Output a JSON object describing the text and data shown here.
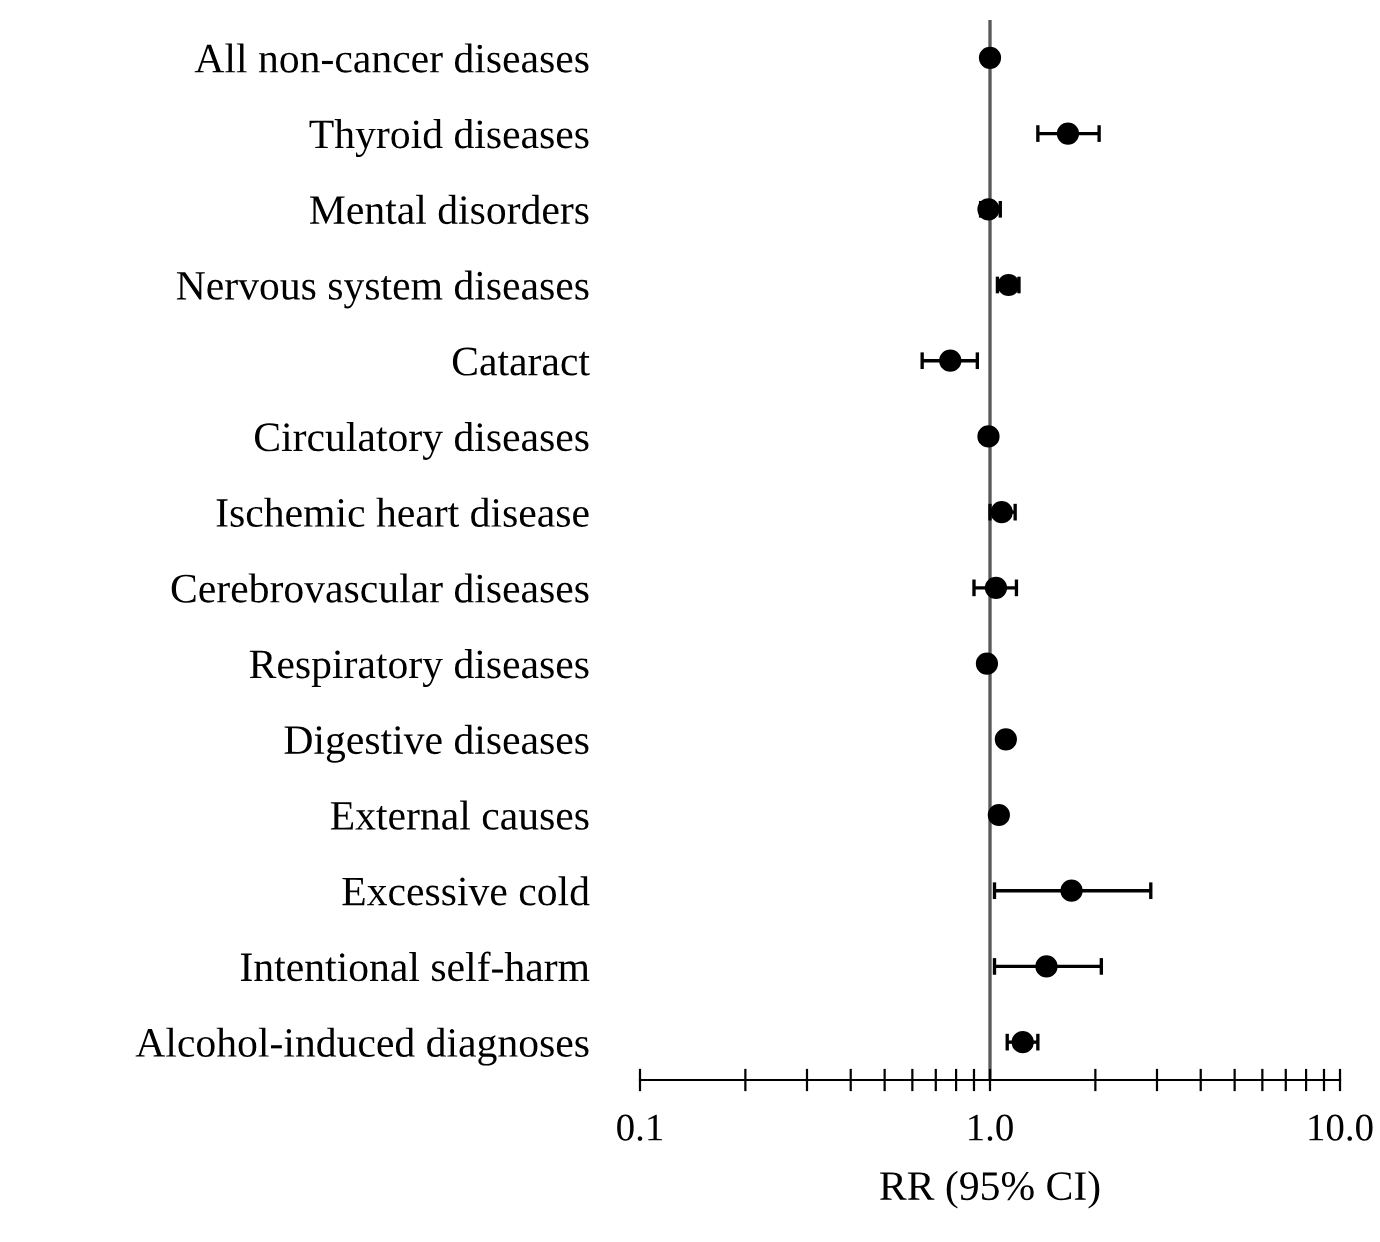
{
  "chart_data": {
    "type": "scatter",
    "orientation": "horizontal",
    "xlabel": "RR (95% CI)",
    "categories": [
      "All non-cancer diseases",
      "Thyroid diseases",
      "Mental disorders",
      "Nervous system diseases",
      "Cataract",
      "Circulatory diseases",
      "Ischemic heart disease",
      "Cerebrovascular diseases",
      "Respiratory diseases",
      "Digestive diseases",
      "External causes",
      "Excessive cold",
      "Intentional self-harm",
      "Alcohol-induced diagnoses"
    ],
    "series": [
      {
        "color": "#000000",
        "values": [
          1.0,
          1.67,
          0.99,
          1.13,
          0.77,
          0.99,
          1.08,
          1.04,
          0.98,
          1.11,
          1.06,
          1.71,
          1.45,
          1.24
        ],
        "errors": [
          null,
          [
            1.37,
            2.05
          ],
          [
            0.94,
            1.07
          ],
          [
            1.05,
            1.21
          ],
          [
            0.64,
            0.92
          ],
          null,
          [
            1.0,
            1.18
          ],
          [
            0.9,
            1.19
          ],
          null,
          null,
          null,
          [
            1.03,
            2.88
          ],
          [
            1.03,
            2.08
          ],
          [
            1.12,
            1.37
          ]
        ]
      }
    ],
    "log": "x",
    "xlim": [
      0.1,
      10
    ],
    "xticks": [
      {
        "value": 0.1,
        "label": "0.1"
      },
      {
        "value": 0.2,
        "label": null
      },
      {
        "value": 0.3,
        "label": null
      },
      {
        "value": 0.4,
        "label": null
      },
      {
        "value": 0.5,
        "label": null
      },
      {
        "value": 0.6,
        "label": null
      },
      {
        "value": 0.7,
        "label": null
      },
      {
        "value": 0.8,
        "label": null
      },
      {
        "value": 0.9,
        "label": null
      },
      {
        "value": 1,
        "label": "1.0"
      },
      {
        "value": 2,
        "label": null
      },
      {
        "value": 3,
        "label": null
      },
      {
        "value": 4,
        "label": null
      },
      {
        "value": 5,
        "label": null
      },
      {
        "value": 6,
        "label": null
      },
      {
        "value": 7,
        "label": null
      },
      {
        "value": 8,
        "label": null
      },
      {
        "value": 9,
        "label": null
      },
      {
        "value": 10,
        "label": "10.0"
      }
    ],
    "ref_lines": [
      {
        "axis": "x",
        "value": 1,
        "color": "#595959"
      }
    ],
    "marker": "circle",
    "grid": false
  }
}
